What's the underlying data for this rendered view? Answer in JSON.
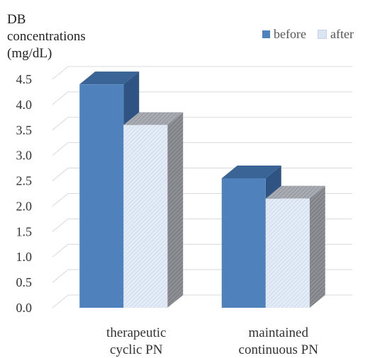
{
  "chart_data": {
    "type": "bar",
    "categories": [
      [
        "therapeutic",
        "cyclic PN"
      ],
      [
        "maintained",
        "continuous PN"
      ]
    ],
    "series": [
      {
        "name": "before",
        "values": [
          4.4,
          2.55
        ],
        "color": "#4F81BD"
      },
      {
        "name": "after",
        "values": [
          3.6,
          2.15
        ],
        "color": "#DCE6F2"
      }
    ],
    "ylabel": "DB\nconcentrations\n(mg/dL)",
    "ylim": [
      0,
      4.5
    ],
    "yticks": [
      "0.0",
      "0.5",
      "1.0",
      "1.5",
      "2.0",
      "2.5",
      "3.0",
      "3.5",
      "4.0",
      "4.5"
    ],
    "grid": true,
    "legend": "top-right",
    "style": "3d-column"
  }
}
